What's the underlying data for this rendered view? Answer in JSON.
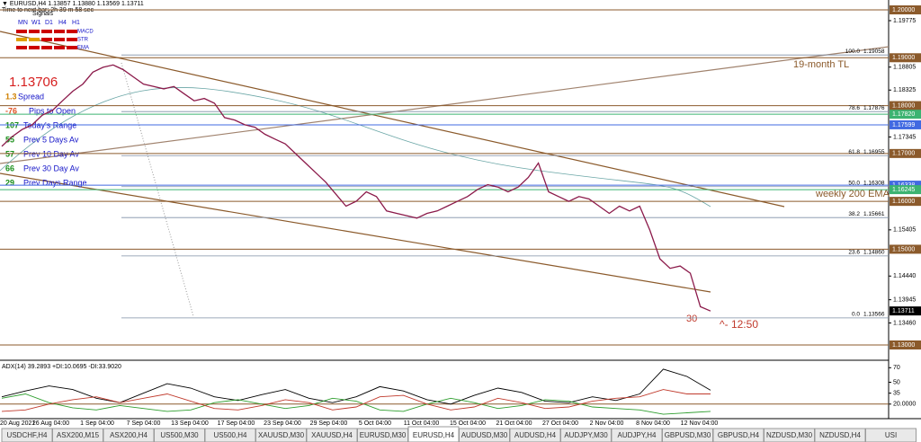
{
  "header": {
    "symbol_line": "▼ EURUSD,H4  1.13857 1.13880 1.13569 1.13711",
    "timer": "Time to next bar: 2h 39 m 58 sec"
  },
  "signals": {
    "title": "Signals",
    "timeframes": [
      "MN",
      "W1",
      "D1",
      "H4",
      "H1"
    ],
    "rows": [
      "MACD",
      "STR",
      "EMA"
    ]
  },
  "panel": {
    "price": "1.13706",
    "stats": [
      {
        "value": "1.3",
        "label": "Spread"
      },
      {
        "value": "-76",
        "label": "Pips to Open"
      },
      {
        "value": "107",
        "label": "Today's Range"
      },
      {
        "value": "55",
        "label": "Prev 5 Days Av"
      },
      {
        "value": "57",
        "label": "Prev 10 Day Av"
      },
      {
        "value": "66",
        "label": "Prev 30 Day Av"
      },
      {
        "value": "29",
        "label": "Prev Days Range"
      }
    ]
  },
  "price_axis": [
    {
      "value": 1.2,
      "label": "1.20000",
      "boxed": true,
      "color": "#8b5a2b"
    },
    {
      "value": 1.19775,
      "label": "1.19775"
    },
    {
      "value": 1.19,
      "label": "1.19000",
      "boxed": true,
      "color": "#8b5a2b"
    },
    {
      "value": 1.18805,
      "label": "1.18805"
    },
    {
      "value": 1.18325,
      "label": "1.18325"
    },
    {
      "value": 1.18,
      "label": "1.18000",
      "boxed": true,
      "color": "#8b5a2b"
    },
    {
      "value": 1.1782,
      "label": "1.17820",
      "boxed": true,
      "color": "#3cb371"
    },
    {
      "value": 1.17599,
      "label": "1.17599",
      "boxed": true,
      "color": "#4169e1"
    },
    {
      "value": 1.17345,
      "label": "1.17345"
    },
    {
      "value": 1.17,
      "label": "1.17000",
      "boxed": true,
      "color": "#8b5a2b"
    },
    {
      "value": 1.16338,
      "label": "1.16338",
      "boxed": true,
      "color": "#4169e1"
    },
    {
      "value": 1.16245,
      "label": "1.16245",
      "boxed": true,
      "color": "#3cb371"
    },
    {
      "value": 1.16,
      "label": "1.16000",
      "boxed": true,
      "color": "#8b5a2b"
    },
    {
      "value": 1.15405,
      "label": "1.15405"
    },
    {
      "value": 1.15,
      "label": "1.15000",
      "boxed": true,
      "color": "#8b5a2b"
    },
    {
      "value": 1.1444,
      "label": "1.14440"
    },
    {
      "value": 1.13945,
      "label": "1.13945"
    },
    {
      "value": 1.13711,
      "label": "1.13711",
      "boxed": true,
      "color": "#000000"
    },
    {
      "value": 1.1346,
      "label": "1.13460"
    },
    {
      "value": 1.13,
      "label": "1.13000",
      "boxed": true,
      "color": "#8b5a2b"
    }
  ],
  "fib_levels": [
    {
      "level": "100.0",
      "value": 1.19058,
      "label": "1.19058"
    },
    {
      "level": "78.6",
      "value": 1.17876,
      "label": "1.17876"
    },
    {
      "level": "61.8",
      "value": 1.16955,
      "label": "1.16955"
    },
    {
      "level": "50.0",
      "value": 1.16308,
      "label": "1.16308"
    },
    {
      "level": "38.2",
      "value": 1.15661,
      "label": "1.15661"
    },
    {
      "level": "23.6",
      "value": 1.1486,
      "label": "1.14860"
    },
    {
      "level": "0.0",
      "value": 1.13566,
      "label": "1.13566"
    }
  ],
  "annotations": {
    "trend_line": "19-month TL",
    "ema": "weekly 200 EMA",
    "count": "30",
    "time": "^- 12:50"
  },
  "price_closes": [
    1.1715,
    1.1735,
    1.175,
    1.176,
    1.178,
    1.179,
    1.181,
    1.183,
    1.1845,
    1.187,
    1.188,
    1.1885,
    1.1875,
    1.186,
    1.1845,
    1.184,
    1.1835,
    1.184,
    1.1825,
    1.181,
    1.1815,
    1.1805,
    1.1775,
    1.177,
    1.176,
    1.1755,
    1.174,
    1.173,
    1.172,
    1.17,
    1.168,
    1.166,
    1.164,
    1.1615,
    1.159,
    1.16,
    1.162,
    1.161,
    1.158,
    1.1575,
    1.157,
    1.1565,
    1.1575,
    1.158,
    1.159,
    1.16,
    1.161,
    1.1625,
    1.1635,
    1.163,
    1.162,
    1.163,
    1.165,
    1.168,
    1.162,
    1.161,
    1.16,
    1.161,
    1.1605,
    1.159,
    1.1575,
    1.159,
    1.158,
    1.159,
    1.154,
    1.148,
    1.146,
    1.1465,
    1.145,
    1.138,
    1.1371
  ],
  "adx": {
    "title": "ADX(14) 39.2893 +DI:10.0695 -DI:33.9020",
    "axis": [
      {
        "value": 70,
        "label": "70"
      },
      {
        "value": 50,
        "label": "50"
      },
      {
        "value": 35,
        "label": "35"
      },
      {
        "value": 20,
        "label": "20.0000"
      },
      {
        "value": 0,
        "label": "0"
      }
    ],
    "adx": [
      30,
      38,
      45,
      40,
      28,
      22,
      35,
      48,
      42,
      30,
      25,
      33,
      40,
      28,
      22,
      30,
      44,
      38,
      26,
      20,
      32,
      42,
      36,
      24,
      22,
      30,
      25,
      34,
      68,
      58,
      39
    ],
    "plus_di": [
      28,
      34,
      22,
      15,
      12,
      18,
      14,
      10,
      12,
      22,
      26,
      20,
      14,
      18,
      28,
      24,
      12,
      10,
      20,
      28,
      22,
      14,
      18,
      26,
      24,
      16,
      14,
      12,
      6,
      8,
      10
    ],
    "minus_di": [
      10,
      12,
      20,
      26,
      30,
      22,
      28,
      34,
      24,
      14,
      12,
      18,
      26,
      22,
      12,
      16,
      30,
      32,
      20,
      12,
      16,
      28,
      22,
      14,
      16,
      24,
      28,
      30,
      40,
      34,
      34
    ]
  },
  "time_axis": [
    "20 Aug 2021",
    "26 Aug 04:00",
    "1 Sep 04:00",
    "7 Sep 04:00",
    "13 Sep 04:00",
    "17 Sep 04:00",
    "23 Sep 04:00",
    "29 Sep 04:00",
    "5 Oct 04:00",
    "11 Oct 04:00",
    "15 Oct 04:00",
    "21 Oct 04:00",
    "27 Oct 04:00",
    "2 Nov 04:00",
    "8 Nov 04:00",
    "12 Nov 04:00"
  ],
  "tabs": [
    "USDCHF,H4",
    "ASX200,M15",
    "ASX200,H4",
    "US500,M30",
    "US500,H4",
    "XAUUSD,M30",
    "XAUUSD,H4",
    "EURUSD,M30",
    "EURUSD,H4",
    "AUDUSD,M30",
    "AUDUSD,H4",
    "AUDJPY,M30",
    "AUDJPY,H4",
    "GBPUSD,M30",
    "GBPUSD,H4",
    "NZDUSD,M30",
    "NZDUSD,H4",
    "USI"
  ],
  "active_tab": 8
}
